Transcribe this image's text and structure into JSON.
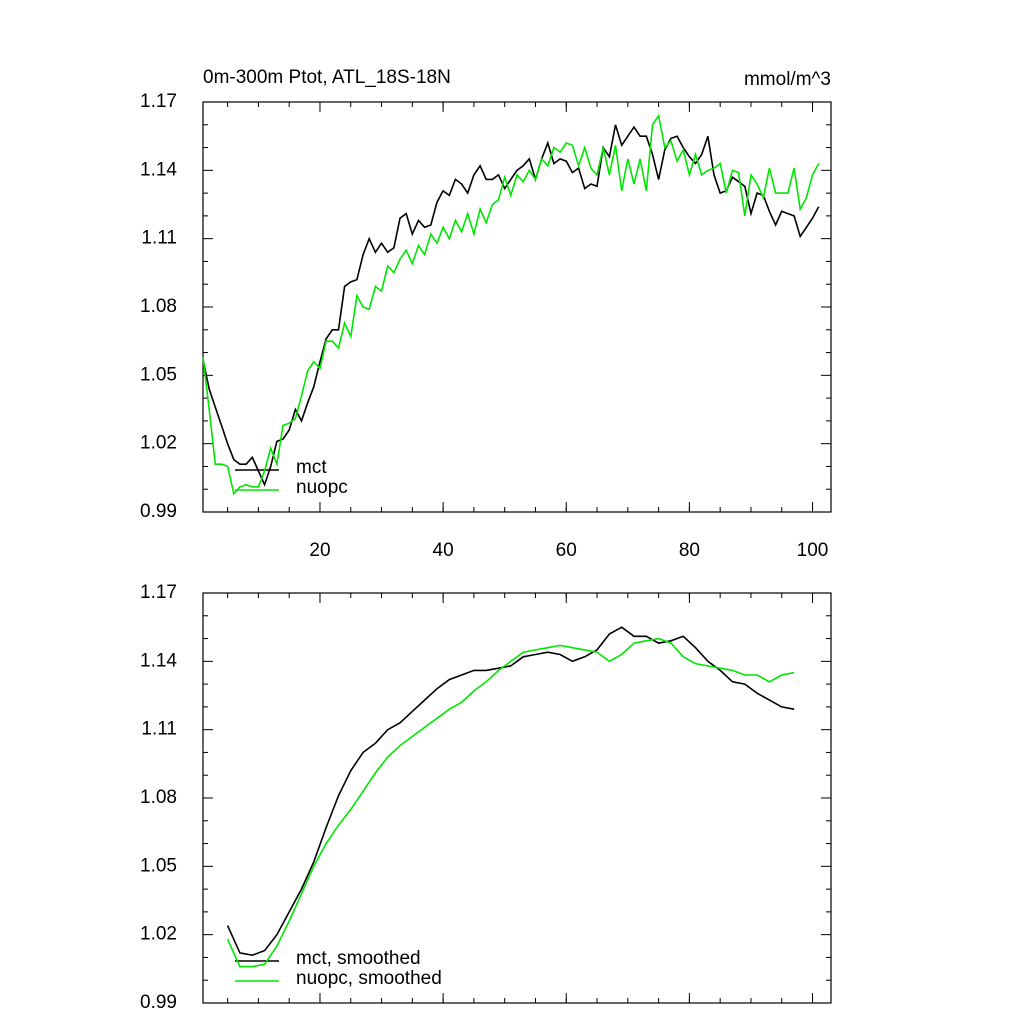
{
  "chart_data": [
    {
      "type": "line",
      "title": "0m-300m Ptot, ATL_18S-18N",
      "units_label": "mmol/m^3",
      "x": [
        1,
        2,
        3,
        4,
        5,
        6,
        7,
        8,
        9,
        10,
        11,
        12,
        13,
        14,
        15,
        16,
        17,
        18,
        19,
        20,
        21,
        22,
        23,
        24,
        25,
        26,
        27,
        28,
        29,
        30,
        31,
        32,
        33,
        34,
        35,
        36,
        37,
        38,
        39,
        40,
        41,
        42,
        43,
        44,
        45,
        46,
        47,
        48,
        49,
        50,
        51,
        52,
        53,
        54,
        55,
        56,
        57,
        58,
        59,
        60,
        61,
        62,
        63,
        64,
        65,
        66,
        67,
        68,
        69,
        70,
        71,
        72,
        73,
        74,
        75,
        76,
        77,
        78,
        79,
        80,
        81,
        82,
        83,
        84,
        85,
        86,
        87,
        88,
        89,
        90,
        91,
        92,
        93,
        94,
        95,
        96,
        97,
        98,
        99,
        100,
        101
      ],
      "series": [
        {
          "name": "mct",
          "color": "#000000",
          "values": [
            1.057,
            1.044,
            1.036,
            1.028,
            1.02,
            1.013,
            1.011,
            1.011,
            1.014,
            1.008,
            1.002,
            1.01,
            1.021,
            1.022,
            1.026,
            1.035,
            1.03,
            1.038,
            1.045,
            1.056,
            1.066,
            1.07,
            1.07,
            1.089,
            1.091,
            1.092,
            1.103,
            1.11,
            1.104,
            1.108,
            1.104,
            1.106,
            1.119,
            1.121,
            1.112,
            1.118,
            1.115,
            1.116,
            1.126,
            1.131,
            1.129,
            1.136,
            1.134,
            1.13,
            1.138,
            1.142,
            1.136,
            1.136,
            1.138,
            1.132,
            1.136,
            1.14,
            1.142,
            1.145,
            1.136,
            1.145,
            1.152,
            1.143,
            1.145,
            1.144,
            1.139,
            1.141,
            1.132,
            1.134,
            1.133,
            1.15,
            1.146,
            1.16,
            1.151,
            1.155,
            1.159,
            1.155,
            1.155,
            1.147,
            1.136,
            1.149,
            1.154,
            1.155,
            1.15,
            1.146,
            1.143,
            1.147,
            1.155,
            1.138,
            1.13,
            1.131,
            1.137,
            1.135,
            1.133,
            1.121,
            1.13,
            1.129,
            1.122,
            1.116,
            1.122,
            1.121,
            1.12,
            1.111,
            1.115,
            1.119,
            1.124
          ]
        },
        {
          "name": "nuopc",
          "color": "#00e600",
          "values": [
            1.058,
            1.035,
            1.011,
            1.011,
            1.01,
            0.998,
            1.001,
            1.002,
            1.001,
            1.001,
            1.008,
            1.018,
            1.011,
            1.028,
            1.029,
            1.031,
            1.041,
            1.052,
            1.056,
            1.053,
            1.065,
            1.065,
            1.062,
            1.073,
            1.067,
            1.085,
            1.08,
            1.079,
            1.089,
            1.087,
            1.098,
            1.095,
            1.101,
            1.105,
            1.099,
            1.107,
            1.103,
            1.112,
            1.108,
            1.115,
            1.11,
            1.118,
            1.113,
            1.121,
            1.112,
            1.123,
            1.117,
            1.125,
            1.127,
            1.137,
            1.129,
            1.138,
            1.135,
            1.14,
            1.136,
            1.145,
            1.142,
            1.15,
            1.148,
            1.152,
            1.151,
            1.142,
            1.15,
            1.141,
            1.138,
            1.15,
            1.138,
            1.151,
            1.131,
            1.145,
            1.134,
            1.145,
            1.131,
            1.16,
            1.164,
            1.15,
            1.153,
            1.144,
            1.149,
            1.138,
            1.147,
            1.138,
            1.14,
            1.141,
            1.143,
            1.13,
            1.14,
            1.139,
            1.12,
            1.138,
            1.134,
            1.128,
            1.141,
            1.13,
            1.13,
            1.13,
            1.141,
            1.123,
            1.128,
            1.138,
            1.143
          ]
        }
      ],
      "xlim": [
        1,
        103
      ],
      "xticks": [
        20,
        40,
        60,
        80,
        100
      ],
      "show_xtick_labels": true,
      "ylim": [
        0.99,
        1.17
      ],
      "yticks": [
        0.99,
        1.02,
        1.05,
        1.08,
        1.11,
        1.14,
        1.17
      ],
      "legend": "lower left"
    },
    {
      "type": "line",
      "x": [
        5,
        7,
        9,
        11,
        13,
        15,
        17,
        19,
        21,
        23,
        25,
        27,
        29,
        31,
        33,
        35,
        37,
        39,
        41,
        43,
        45,
        47,
        49,
        51,
        53,
        55,
        57,
        59,
        61,
        63,
        65,
        67,
        69,
        71,
        73,
        75,
        77,
        79,
        81,
        83,
        85,
        87,
        89,
        91,
        93,
        95,
        97
      ],
      "series": [
        {
          "name": "mct, smoothed",
          "color": "#000000",
          "values": [
            1.024,
            1.012,
            1.011,
            1.013,
            1.02,
            1.03,
            1.04,
            1.052,
            1.067,
            1.081,
            1.092,
            1.1,
            1.104,
            1.11,
            1.113,
            1.118,
            1.123,
            1.128,
            1.132,
            1.134,
            1.136,
            1.136,
            1.137,
            1.138,
            1.142,
            1.143,
            1.144,
            1.143,
            1.14,
            1.142,
            1.145,
            1.152,
            1.155,
            1.151,
            1.151,
            1.148,
            1.149,
            1.151,
            1.146,
            1.14,
            1.136,
            1.131,
            1.13,
            1.126,
            1.123,
            1.12,
            1.119
          ]
        },
        {
          "name": "nuopc, smoothed",
          "color": "#00e600",
          "values": [
            1.018,
            1.006,
            1.006,
            1.007,
            1.015,
            1.026,
            1.038,
            1.05,
            1.06,
            1.068,
            1.075,
            1.083,
            1.091,
            1.098,
            1.103,
            1.107,
            1.111,
            1.115,
            1.119,
            1.122,
            1.127,
            1.131,
            1.136,
            1.14,
            1.144,
            1.145,
            1.146,
            1.147,
            1.146,
            1.145,
            1.144,
            1.14,
            1.143,
            1.148,
            1.149,
            1.15,
            1.148,
            1.142,
            1.139,
            1.138,
            1.137,
            1.136,
            1.134,
            1.134,
            1.131,
            1.134,
            1.135
          ]
        }
      ],
      "xlim": [
        1,
        103
      ],
      "xticks": [
        20,
        40,
        60,
        80,
        100
      ],
      "show_xtick_labels": false,
      "ylim": [
        0.99,
        1.17
      ],
      "yticks": [
        0.99,
        1.02,
        1.05,
        1.08,
        1.11,
        1.14,
        1.17
      ],
      "legend": "lower left"
    }
  ]
}
